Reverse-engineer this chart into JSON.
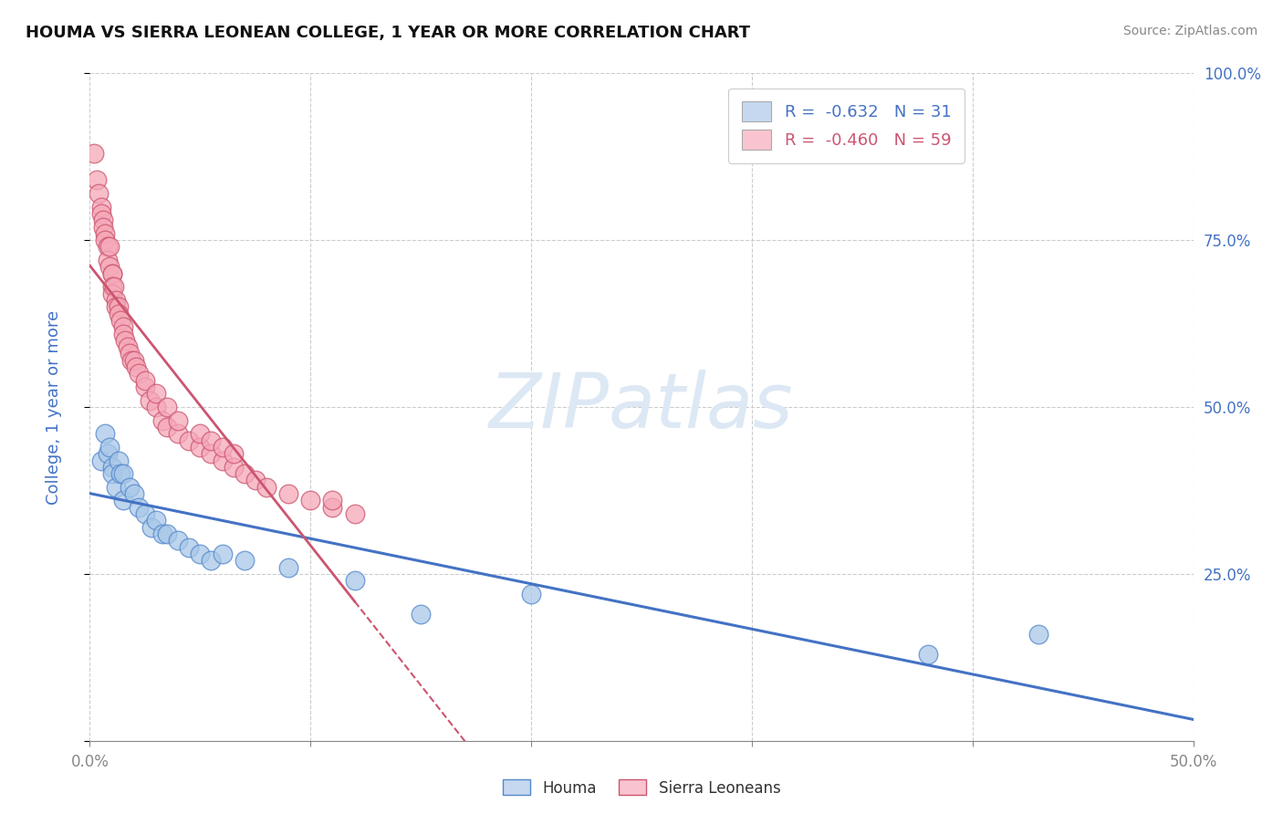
{
  "title": "HOUMA VS SIERRA LEONEAN COLLEGE, 1 YEAR OR MORE CORRELATION CHART",
  "source_text": "Source: ZipAtlas.com",
  "ylabel": "College, 1 year or more",
  "xlim": [
    0.0,
    0.5
  ],
  "ylim": [
    0.0,
    1.0
  ],
  "x_ticks": [
    0.0,
    0.1,
    0.2,
    0.3,
    0.4,
    0.5
  ],
  "x_tick_labels": [
    "0.0%",
    "",
    "",
    "",
    "",
    "50.0%"
  ],
  "y_ticks": [
    0.0,
    0.25,
    0.5,
    0.75,
    1.0
  ],
  "y_tick_labels_left": [
    "",
    "",
    "",
    "",
    ""
  ],
  "y_tick_labels_right": [
    "",
    "25.0%",
    "50.0%",
    "75.0%",
    "100.0%"
  ],
  "houma_r": -0.632,
  "houma_n": 31,
  "sierra_r": -0.46,
  "sierra_n": 59,
  "houma_color": "#a8c8e8",
  "sierra_color": "#f5a8b8",
  "houma_edge_color": "#5588cc",
  "sierra_edge_color": "#cc5570",
  "houma_line_color": "#4472c4",
  "sierra_line_color": "#cc5570",
  "legend_blue_face": "#c5d8ef",
  "legend_pink_face": "#f9c4cf",
  "watermark_color": "#dde8f5",
  "background_color": "#ffffff",
  "grid_color": "#cccccc",
  "axis_label_color": "#4472c4",
  "tick_label_color": "#4472c4",
  "houma_x": [
    0.005,
    0.007,
    0.008,
    0.009,
    0.01,
    0.01,
    0.012,
    0.013,
    0.014,
    0.015,
    0.015,
    0.018,
    0.02,
    0.022,
    0.025,
    0.028,
    0.03,
    0.033,
    0.035,
    0.04,
    0.045,
    0.05,
    0.055,
    0.06,
    0.07,
    0.09,
    0.12,
    0.15,
    0.2,
    0.38,
    0.43
  ],
  "houma_y": [
    0.42,
    0.46,
    0.43,
    0.44,
    0.41,
    0.4,
    0.38,
    0.42,
    0.4,
    0.4,
    0.36,
    0.38,
    0.37,
    0.35,
    0.34,
    0.32,
    0.33,
    0.31,
    0.31,
    0.3,
    0.29,
    0.28,
    0.27,
    0.28,
    0.27,
    0.26,
    0.24,
    0.19,
    0.22,
    0.13,
    0.16
  ],
  "sierra_x": [
    0.002,
    0.003,
    0.004,
    0.005,
    0.005,
    0.006,
    0.006,
    0.007,
    0.007,
    0.008,
    0.008,
    0.009,
    0.009,
    0.01,
    0.01,
    0.01,
    0.01,
    0.011,
    0.012,
    0.012,
    0.013,
    0.013,
    0.014,
    0.015,
    0.015,
    0.016,
    0.017,
    0.018,
    0.019,
    0.02,
    0.021,
    0.022,
    0.025,
    0.027,
    0.03,
    0.033,
    0.035,
    0.04,
    0.045,
    0.05,
    0.055,
    0.06,
    0.065,
    0.07,
    0.075,
    0.08,
    0.09,
    0.1,
    0.11,
    0.12,
    0.025,
    0.03,
    0.035,
    0.04,
    0.05,
    0.055,
    0.06,
    0.065,
    0.11
  ],
  "sierra_y": [
    0.88,
    0.84,
    0.82,
    0.8,
    0.79,
    0.78,
    0.77,
    0.76,
    0.75,
    0.74,
    0.72,
    0.74,
    0.71,
    0.7,
    0.7,
    0.68,
    0.67,
    0.68,
    0.66,
    0.65,
    0.65,
    0.64,
    0.63,
    0.62,
    0.61,
    0.6,
    0.59,
    0.58,
    0.57,
    0.57,
    0.56,
    0.55,
    0.53,
    0.51,
    0.5,
    0.48,
    0.47,
    0.46,
    0.45,
    0.44,
    0.43,
    0.42,
    0.41,
    0.4,
    0.39,
    0.38,
    0.37,
    0.36,
    0.35,
    0.34,
    0.54,
    0.52,
    0.5,
    0.48,
    0.46,
    0.45,
    0.44,
    0.43,
    0.36
  ]
}
